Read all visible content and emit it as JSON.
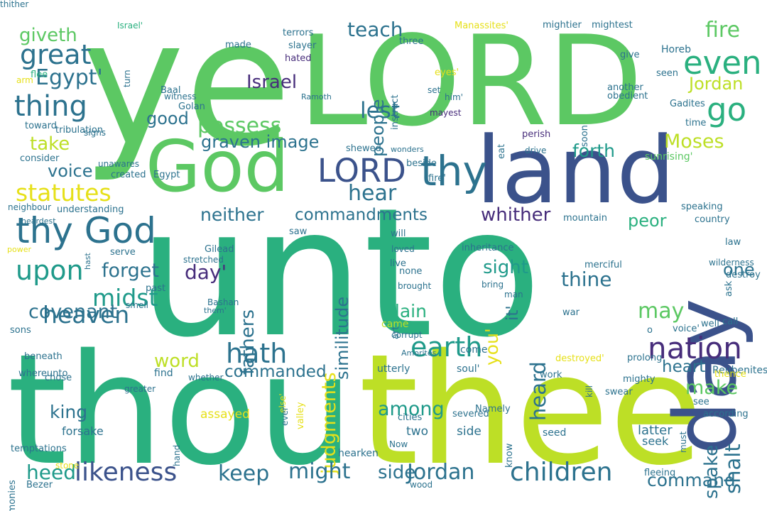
{
  "background": "#ffffff",
  "palette": {
    "green": "#5cc863",
    "lime": "#bddf26",
    "yellow": "#e6e019",
    "teal": "#2ab07f",
    "seagreen": "#1f9a8a",
    "blue": "#2c728e",
    "slate": "#3b528b",
    "indigo": "#472d7b",
    "purple": "#440154"
  },
  "words": [
    {
      "text": "unto",
      "color": "#2ab07f"
    },
    {
      "text": "ye",
      "color": "#5cc863"
    },
    {
      "text": "LORD",
      "color": "#5cc863"
    },
    {
      "text": "thou",
      "color": "#2ab07f"
    },
    {
      "text": "thee",
      "color": "#bddf26"
    },
    {
      "text": "God",
      "color": "#5cc863"
    },
    {
      "text": "land",
      "color": "#3b528b"
    },
    {
      "text": "day",
      "color": "#3b528b"
    },
    {
      "text": "thy God",
      "color": "#2c728e"
    },
    {
      "text": "LORD",
      "color": "#3b528b"
    },
    {
      "text": "thy",
      "color": "#2c728e"
    },
    {
      "text": "nation",
      "color": "#472d7b"
    },
    {
      "text": "children",
      "color": "#2c728e"
    },
    {
      "text": "likeness",
      "color": "#3b528b"
    },
    {
      "text": "great",
      "color": "#2c728e"
    },
    {
      "text": "thing",
      "color": "#2c728e"
    },
    {
      "text": "statutes",
      "color": "#e6e019"
    },
    {
      "text": "upon",
      "color": "#1f9a8a"
    },
    {
      "text": "heaven",
      "color": "#2c728e"
    },
    {
      "text": "hath",
      "color": "#2c728e"
    },
    {
      "text": "earth",
      "color": "#1f9a8a"
    },
    {
      "text": "go",
      "color": "#2ab07f"
    },
    {
      "text": "even",
      "color": "#2ab07f"
    },
    {
      "text": "fire",
      "color": "#5cc863"
    },
    {
      "text": "teach",
      "color": "#2c728e"
    },
    {
      "text": "possess",
      "color": "#5cc863"
    },
    {
      "text": "Jordan",
      "color": "#bddf26"
    },
    {
      "text": "Moses",
      "color": "#bddf26"
    },
    {
      "text": "lest",
      "color": "#2c728e"
    },
    {
      "text": "midst",
      "color": "#1f9a8a"
    },
    {
      "text": "judgments",
      "color": "#e6e019"
    },
    {
      "text": "hear",
      "color": "#2c728e"
    },
    {
      "text": "similitude",
      "color": "#2c728e"
    },
    {
      "text": "fathers",
      "color": "#2c728e"
    },
    {
      "text": "people",
      "color": "#2c728e"
    },
    {
      "text": "Israel",
      "color": "#472d7b"
    },
    {
      "text": "whither",
      "color": "#472d7b"
    },
    {
      "text": "sight",
      "color": "#1f9a8a"
    },
    {
      "text": "thine",
      "color": "#2c728e"
    },
    {
      "text": "may",
      "color": "#5cc863"
    },
    {
      "text": "heart",
      "color": "#2c728e"
    },
    {
      "text": "make",
      "color": "#5cc863"
    },
    {
      "text": "shalt",
      "color": "#2c728e"
    },
    {
      "text": "keep",
      "color": "#2c728e"
    },
    {
      "text": "might",
      "color": "#2c728e"
    },
    {
      "text": "side",
      "color": "#2c728e"
    },
    {
      "text": "Jordan",
      "color": "#2c728e"
    },
    {
      "text": "heed",
      "color": "#1f9a8a"
    },
    {
      "text": "king",
      "color": "#2c728e"
    },
    {
      "text": "word",
      "color": "#bddf26"
    },
    {
      "text": "covenant",
      "color": "#2c728e"
    },
    {
      "text": "forget",
      "color": "#2c728e"
    },
    {
      "text": "neither",
      "color": "#2c728e"
    },
    {
      "text": "voice",
      "color": "#2c728e"
    },
    {
      "text": "take",
      "color": "#bddf26"
    },
    {
      "text": "good",
      "color": "#2c728e"
    },
    {
      "text": "Egypt'",
      "color": "#2c728e"
    },
    {
      "text": "giveth",
      "color": "#5cc863"
    },
    {
      "text": "commandments",
      "color": "#2c728e"
    },
    {
      "text": "commanded",
      "color": "#2c728e"
    },
    {
      "text": "among",
      "color": "#1f9a8a"
    },
    {
      "text": "command",
      "color": "#2c728e"
    },
    {
      "text": "heard",
      "color": "#2c728e"
    },
    {
      "text": "spake",
      "color": "#2c728e"
    },
    {
      "text": "forth",
      "color": "#1f9a8a"
    },
    {
      "text": "day'",
      "color": "#472d7b"
    },
    {
      "text": "you'",
      "color": "#e6e019"
    },
    {
      "text": "it'",
      "color": "#2c728e"
    },
    {
      "text": "plain",
      "color": "#2ab07f"
    },
    {
      "text": "peor",
      "color": "#2ab07f"
    },
    {
      "text": "one",
      "color": "#2c728e"
    },
    {
      "text": "graven image",
      "color": "#2c728e"
    },
    {
      "text": "Israel'",
      "color": "#2ab07f"
    },
    {
      "text": "terrors",
      "color": "#2c728e"
    },
    {
      "text": "slayer",
      "color": "#2c728e"
    },
    {
      "text": "three",
      "color": "#2c728e"
    },
    {
      "text": "Manassites'",
      "color": "#e6e019"
    },
    {
      "text": "mightier",
      "color": "#2c728e"
    },
    {
      "text": "mightest",
      "color": "#2c728e"
    },
    {
      "text": "made",
      "color": "#2c728e"
    },
    {
      "text": "hated",
      "color": "#472d7b"
    },
    {
      "text": "seen",
      "color": "#2c728e"
    },
    {
      "text": "Horeb",
      "color": "#2c728e"
    },
    {
      "text": "give",
      "color": "#2c728e"
    },
    {
      "text": "turn",
      "color": "#2c728e"
    },
    {
      "text": "flee",
      "color": "#2ab07f"
    },
    {
      "text": "arm",
      "color": "#e6e019"
    },
    {
      "text": "instruct",
      "color": "#2c728e"
    },
    {
      "text": "eyes'",
      "color": "#e6e019"
    },
    {
      "text": "another",
      "color": "#2c728e"
    },
    {
      "text": "obedient",
      "color": "#2c728e"
    },
    {
      "text": "Gadites",
      "color": "#2c728e"
    },
    {
      "text": "time",
      "color": "#2c728e"
    },
    {
      "text": "soon",
      "color": "#2c728e"
    },
    {
      "text": "signs",
      "color": "#2c728e"
    },
    {
      "text": "Baal",
      "color": "#2c728e"
    },
    {
      "text": "witness",
      "color": "#2c728e"
    },
    {
      "text": "Ramoth",
      "color": "#2c728e"
    },
    {
      "text": "Golan",
      "color": "#2c728e"
    },
    {
      "text": "set",
      "color": "#2c728e"
    },
    {
      "text": "him'",
      "color": "#2c728e"
    },
    {
      "text": "mayest",
      "color": "#472d7b"
    },
    {
      "text": "perish",
      "color": "#472d7b"
    },
    {
      "text": "eat",
      "color": "#2c728e"
    },
    {
      "text": "toward",
      "color": "#2c728e"
    },
    {
      "text": "tribulation",
      "color": "#2c728e"
    },
    {
      "text": "consider",
      "color": "#2c728e"
    },
    {
      "text": "unawares",
      "color": "#2c728e"
    },
    {
      "text": "created",
      "color": "#2c728e"
    },
    {
      "text": "Egypt",
      "color": "#2c728e"
    },
    {
      "text": "shewed",
      "color": "#2c728e"
    },
    {
      "text": "wonders",
      "color": "#2c728e"
    },
    {
      "text": "drive",
      "color": "#2c728e"
    },
    {
      "text": "sunrising'",
      "color": "#5cc863"
    },
    {
      "text": "beside",
      "color": "#2c728e"
    },
    {
      "text": "fire'",
      "color": "#2c728e"
    },
    {
      "text": "neighbour",
      "color": "#2c728e"
    },
    {
      "text": "understanding",
      "color": "#2c728e"
    },
    {
      "text": "heardest",
      "color": "#2c728e"
    },
    {
      "text": "power",
      "color": "#e6e019"
    },
    {
      "text": "hast",
      "color": "#2c728e"
    },
    {
      "text": "saw",
      "color": "#2c728e"
    },
    {
      "text": "will",
      "color": "#2c728e"
    },
    {
      "text": "loved",
      "color": "#2c728e"
    },
    {
      "text": "mountain",
      "color": "#2c728e"
    },
    {
      "text": "speaking",
      "color": "#2c728e"
    },
    {
      "text": "country",
      "color": "#2c728e"
    },
    {
      "text": "law",
      "color": "#2c728e"
    },
    {
      "text": "serve",
      "color": "#2c728e"
    },
    {
      "text": "Gilead",
      "color": "#2c728e"
    },
    {
      "text": "stretched",
      "color": "#2c728e"
    },
    {
      "text": "live",
      "color": "#2c728e"
    },
    {
      "text": "none",
      "color": "#2c728e"
    },
    {
      "text": "inheritance",
      "color": "#2c728e"
    },
    {
      "text": "brought",
      "color": "#2c728e"
    },
    {
      "text": "bring",
      "color": "#2c728e"
    },
    {
      "text": "wilderness",
      "color": "#2c728e"
    },
    {
      "text": "destroy",
      "color": "#2c728e"
    },
    {
      "text": "ask",
      "color": "#2c728e"
    },
    {
      "text": "past",
      "color": "#2c728e"
    },
    {
      "text": "Bashan",
      "color": "#2c728e"
    },
    {
      "text": "smell",
      "color": "#2c728e"
    },
    {
      "text": "them'",
      "color": "#2c728e"
    },
    {
      "text": "war",
      "color": "#2c728e"
    },
    {
      "text": "man",
      "color": "#2c728e"
    },
    {
      "text": "merciful",
      "color": "#2c728e"
    },
    {
      "text": "sons",
      "color": "#2c728e"
    },
    {
      "text": "came",
      "color": "#bddf26"
    },
    {
      "text": "art",
      "color": "#2c728e"
    },
    {
      "text": "corrupt",
      "color": "#2c728e"
    },
    {
      "text": "o",
      "color": "#2c728e"
    },
    {
      "text": "voice'",
      "color": "#2c728e"
    },
    {
      "text": "well",
      "color": "#2c728e"
    },
    {
      "text": "call",
      "color": "#2c728e"
    },
    {
      "text": "beneath",
      "color": "#2c728e"
    },
    {
      "text": "chose",
      "color": "#2c728e"
    },
    {
      "text": "Amorites",
      "color": "#2c728e"
    },
    {
      "text": "come",
      "color": "#2c728e"
    },
    {
      "text": "destroyed'",
      "color": "#e6e019"
    },
    {
      "text": "prolong",
      "color": "#2c728e"
    },
    {
      "text": "whereunto",
      "color": "#2c728e"
    },
    {
      "text": "find",
      "color": "#2c728e"
    },
    {
      "text": "whether",
      "color": "#2c728e"
    },
    {
      "text": "utterly",
      "color": "#2c728e"
    },
    {
      "text": "soul'",
      "color": "#2c728e"
    },
    {
      "text": "work",
      "color": "#2c728e"
    },
    {
      "text": "mighty",
      "color": "#2c728e"
    },
    {
      "text": "Reubenites",
      "color": "#2c728e"
    },
    {
      "text": "kill",
      "color": "#2c728e"
    },
    {
      "text": "thence",
      "color": "#e6e019"
    },
    {
      "text": "swear",
      "color": "#2c728e"
    },
    {
      "text": "see",
      "color": "#2c728e"
    },
    {
      "text": "according",
      "color": "#2c728e"
    },
    {
      "text": "greater",
      "color": "#2c728e"
    },
    {
      "text": "else'",
      "color": "#e6e019"
    },
    {
      "text": "ever'",
      "color": "#2c728e"
    },
    {
      "text": "valley",
      "color": "#e6e019"
    },
    {
      "text": "assayed",
      "color": "#e6e019"
    },
    {
      "text": "two",
      "color": "#2c728e"
    },
    {
      "text": "cities",
      "color": "#2c728e"
    },
    {
      "text": "severed",
      "color": "#2c728e"
    },
    {
      "text": "Namely",
      "color": "#2c728e"
    },
    {
      "text": "side",
      "color": "#2c728e"
    },
    {
      "text": "know",
      "color": "#2c728e"
    },
    {
      "text": "latter",
      "color": "#2c728e"
    },
    {
      "text": "seek",
      "color": "#2c728e"
    },
    {
      "text": "must",
      "color": "#2c728e"
    },
    {
      "text": "fleeing",
      "color": "#2c728e"
    },
    {
      "text": "forsake",
      "color": "#2c728e"
    },
    {
      "text": "hand",
      "color": "#2c728e"
    },
    {
      "text": "hearken",
      "color": "#2c728e"
    },
    {
      "text": "Now",
      "color": "#2c728e"
    },
    {
      "text": "seed",
      "color": "#2c728e"
    },
    {
      "text": "temptations",
      "color": "#2c728e"
    },
    {
      "text": "stone",
      "color": "#e6e019"
    },
    {
      "text": "testimonies",
      "color": "#2c728e"
    },
    {
      "text": "Bezer",
      "color": "#2c728e"
    },
    {
      "text": "wood",
      "color": "#2c728e"
    },
    {
      "text": "thither",
      "color": "#2c728e"
    }
  ]
}
